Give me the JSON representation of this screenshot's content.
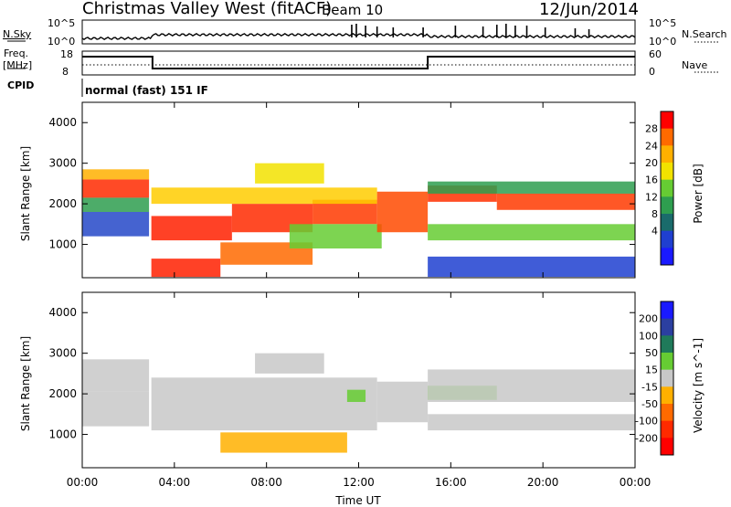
{
  "header": {
    "station": "Christmas Valley West (fitACF)",
    "beam": "Beam 10",
    "date": "12/Jun/2014"
  },
  "nsky_panel": {
    "left_label": "N.Sky",
    "left_ticks": [
      "10^5",
      "10^0"
    ],
    "right_label": "N.Search",
    "right_ticks": [
      "10^5",
      "10^0"
    ]
  },
  "freq_panel": {
    "left_label_1": "Freq.",
    "left_label_2": "[MHz]",
    "left_ticks": [
      "18",
      "8"
    ],
    "right_label": "Nave",
    "right_ticks": [
      "60",
      "0"
    ],
    "cpid_label": "CPID",
    "mode_text": "normal (fast) 151 IF"
  },
  "chart_data": [
    {
      "type": "heatmap",
      "name": "power",
      "ylabel": "Slant Range [km]",
      "yticks": [
        "4000",
        "3000",
        "2000",
        "1000"
      ],
      "xticks": [
        "00:00",
        "04:00",
        "08:00",
        "12:00",
        "16:00",
        "20:00",
        "00:00"
      ],
      "colorbar": {
        "label": "Power [dB]",
        "ticks": [
          "28",
          "24",
          "20",
          "16",
          "12",
          "8",
          "4"
        ],
        "colors": [
          "#ff0000",
          "#ff6a00",
          "#ffb000",
          "#f2e200",
          "#66cc33",
          "#2e9e4f",
          "#1a6b6b",
          "#1f3fd0",
          "#1a1aff"
        ]
      },
      "bands": [
        {
          "t0": 0.0,
          "t1": 2.9,
          "r0": 2150,
          "r1": 2600,
          "color": "#ff2a00"
        },
        {
          "t0": 0.0,
          "t1": 2.9,
          "r0": 2600,
          "r1": 2850,
          "color": "#ffb000"
        },
        {
          "t0": 0.0,
          "t1": 2.9,
          "r0": 1800,
          "r1": 2150,
          "color": "#2e9e4f"
        },
        {
          "t0": 0.0,
          "t1": 2.9,
          "r0": 1200,
          "r1": 1800,
          "color": "#2448c8"
        },
        {
          "t0": 3.0,
          "t1": 6.5,
          "r0": 1100,
          "r1": 1700,
          "color": "#ff2000"
        },
        {
          "t0": 6.5,
          "t1": 10.0,
          "r0": 1300,
          "r1": 2000,
          "color": "#ff2a00"
        },
        {
          "t0": 10.0,
          "t1": 12.8,
          "r0": 1500,
          "r1": 2100,
          "color": "#ff3a00"
        },
        {
          "t0": 3.0,
          "t1": 12.8,
          "r0": 2000,
          "r1": 2400,
          "color": "#ffcc00"
        },
        {
          "t0": 7.5,
          "t1": 10.5,
          "r0": 2500,
          "r1": 3000,
          "color": "#f2e200"
        },
        {
          "t0": 3.0,
          "t1": 6.0,
          "r0": 200,
          "r1": 650,
          "color": "#ff2000"
        },
        {
          "t0": 6.0,
          "t1": 10.0,
          "r0": 500,
          "r1": 1050,
          "color": "#ff6a00"
        },
        {
          "t0": 9.0,
          "t1": 13.0,
          "r0": 900,
          "r1": 1500,
          "color": "#66cc33"
        },
        {
          "t0": 12.8,
          "t1": 15.0,
          "r0": 1300,
          "r1": 2300,
          "color": "#ff4a00"
        },
        {
          "t0": 15.0,
          "t1": 18.0,
          "r0": 2050,
          "r1": 2450,
          "color": "#ff3000"
        },
        {
          "t0": 18.0,
          "t1": 24.0,
          "r0": 1850,
          "r1": 2250,
          "color": "#ff3a00"
        },
        {
          "t0": 15.0,
          "t1": 24.0,
          "r0": 2250,
          "r1": 2550,
          "color": "#2e9e4f"
        },
        {
          "t0": 15.0,
          "t1": 24.0,
          "r0": 1100,
          "r1": 1500,
          "color": "#66cc33"
        },
        {
          "t0": 15.0,
          "t1": 24.0,
          "r0": 200,
          "r1": 700,
          "color": "#1f3fd0"
        }
      ]
    },
    {
      "type": "heatmap",
      "name": "velocity",
      "ylabel": "Slant Range [km]",
      "yticks": [
        "4000",
        "3000",
        "2000",
        "1000"
      ],
      "xticks": [
        "00:00",
        "04:00",
        "08:00",
        "12:00",
        "16:00",
        "20:00",
        "00:00"
      ],
      "xlabel": "Time UT",
      "colorbar": {
        "label": "Velocity [m s^-1]",
        "ticks": [
          "200",
          "100",
          "50",
          "15",
          "-15",
          "-50",
          "-100",
          "-200"
        ],
        "colors": [
          "#1a1aff",
          "#2b3fa0",
          "#1f7a5a",
          "#66cc33",
          "#c8c8c8",
          "#ffb000",
          "#ff6a00",
          "#ff2a00",
          "#ff0000"
        ]
      },
      "bands": [
        {
          "t0": 0.0,
          "t1": 2.9,
          "r0": 2050,
          "r1": 2850,
          "color": "#c8c8c8"
        },
        {
          "t0": 0.0,
          "t1": 2.9,
          "r0": 1200,
          "r1": 2050,
          "color": "#c8c8c8"
        },
        {
          "t0": 3.0,
          "t1": 12.8,
          "r0": 1100,
          "r1": 2400,
          "color": "#c8c8c8"
        },
        {
          "t0": 7.5,
          "t1": 10.5,
          "r0": 2500,
          "r1": 3000,
          "color": "#c8c8c8"
        },
        {
          "t0": 6.0,
          "t1": 11.5,
          "r0": 550,
          "r1": 1050,
          "color": "#ffb000"
        },
        {
          "t0": 11.5,
          "t1": 12.3,
          "r0": 1800,
          "r1": 2100,
          "color": "#66cc33"
        },
        {
          "t0": 12.8,
          "t1": 15.0,
          "r0": 1300,
          "r1": 2300,
          "color": "#c8c8c8"
        },
        {
          "t0": 15.0,
          "t1": 18.0,
          "r0": 1850,
          "r1": 2200,
          "color": "#66cc33"
        },
        {
          "t0": 15.0,
          "t1": 24.0,
          "r0": 1800,
          "r1": 2600,
          "color": "#c8c8c8"
        },
        {
          "t0": 15.0,
          "t1": 24.0,
          "r0": 1100,
          "r1": 1500,
          "color": "#c8c8c8"
        }
      ]
    }
  ]
}
